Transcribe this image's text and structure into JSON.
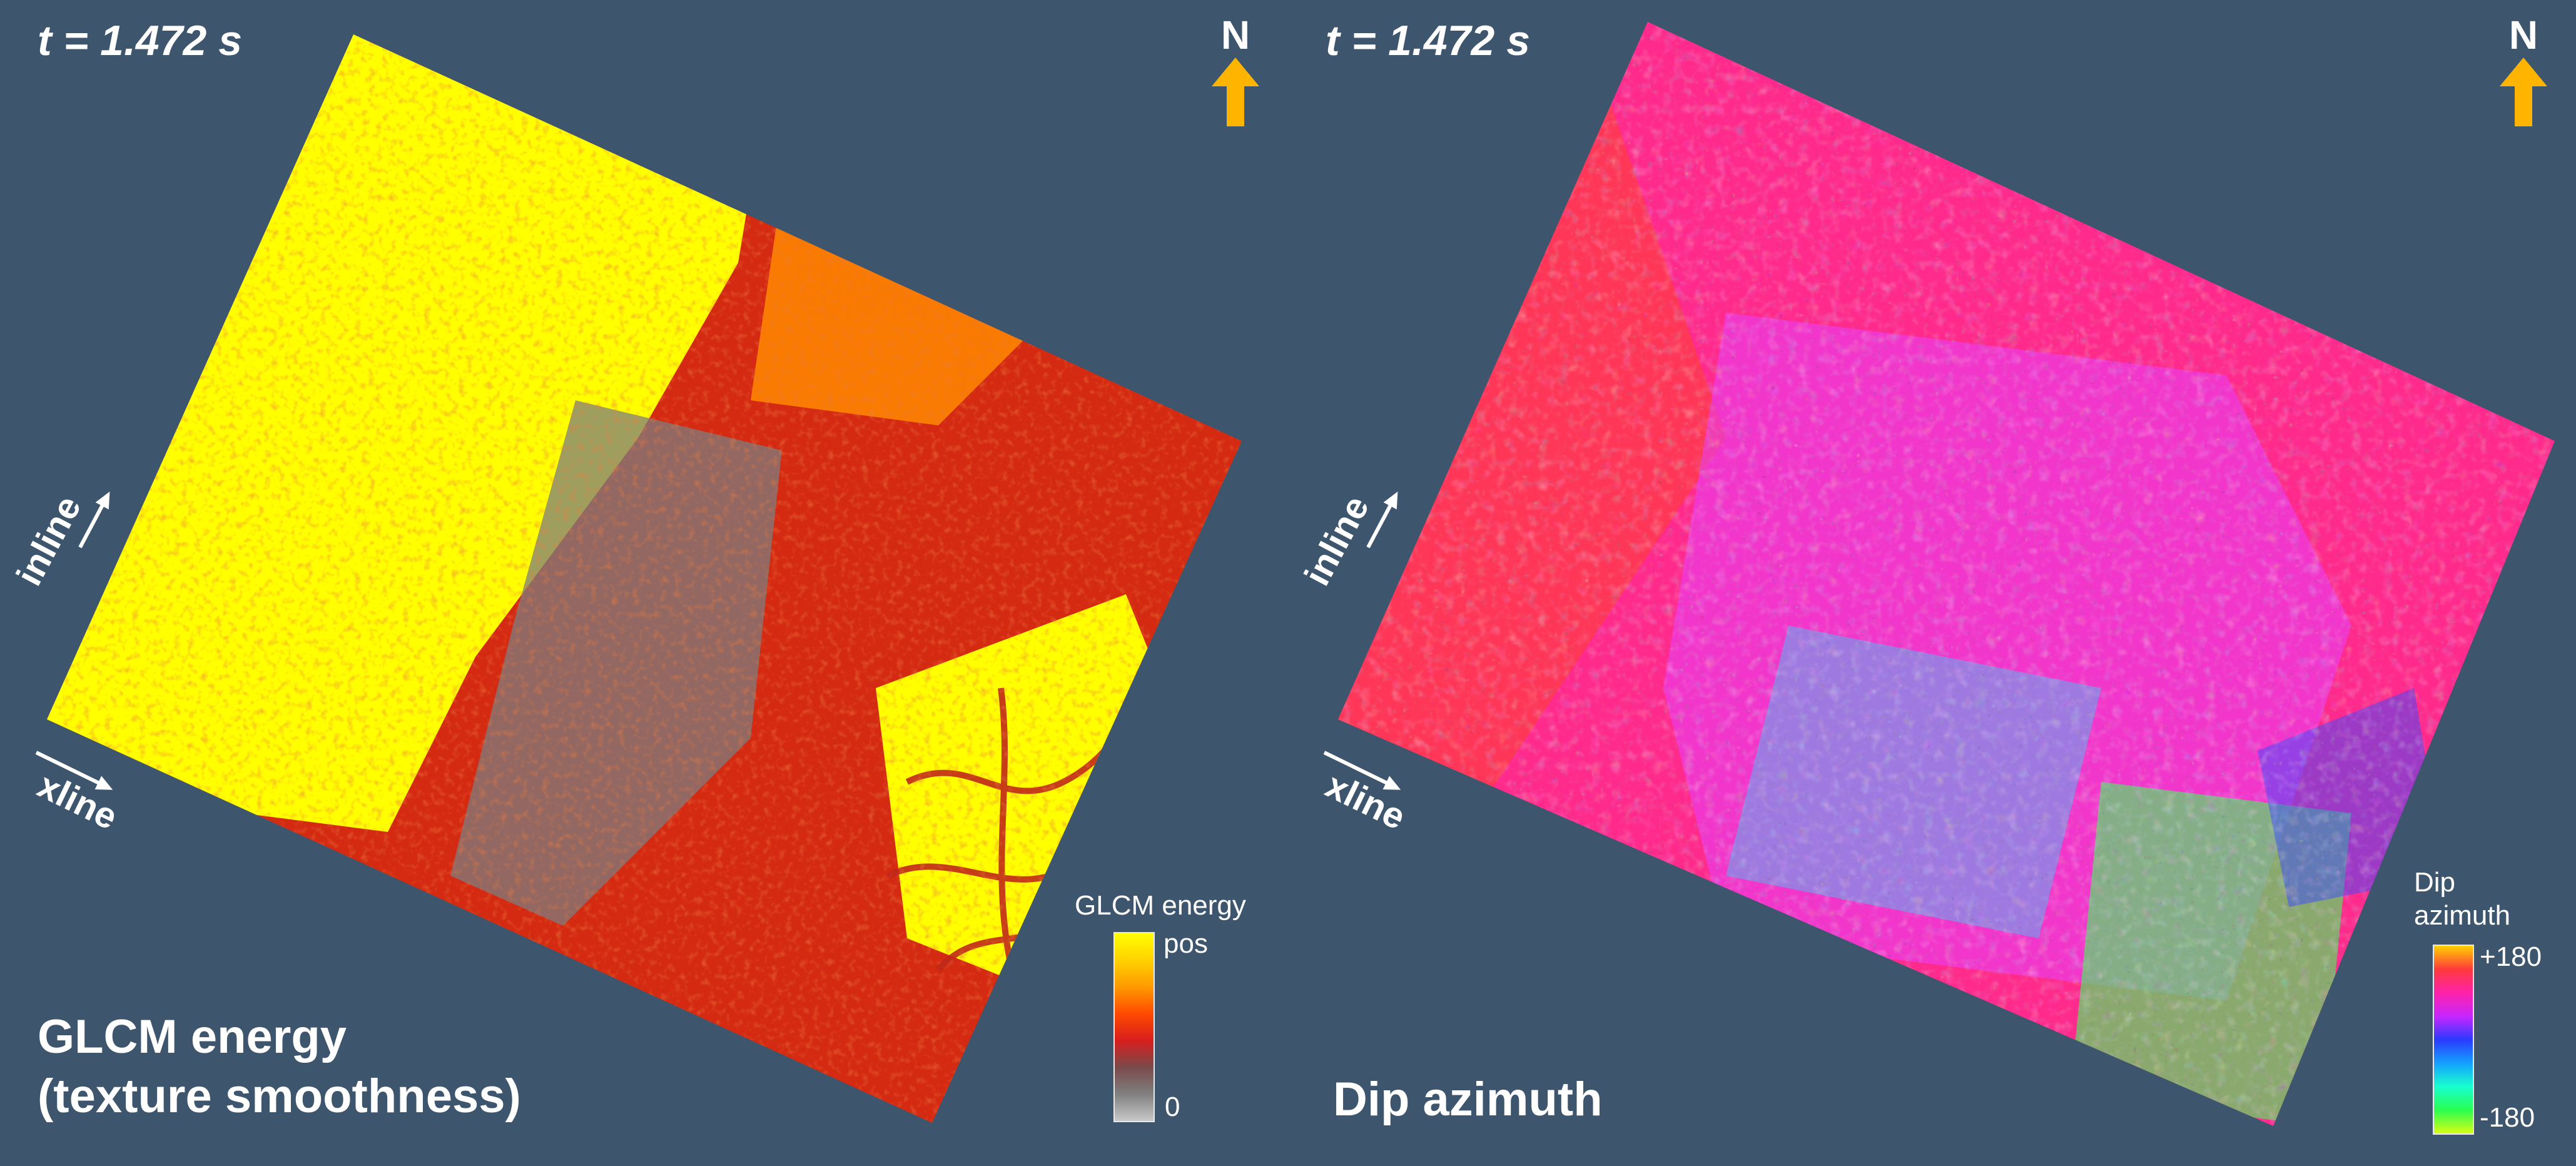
{
  "left_panel": {
    "time_label": "t = 1.472 s",
    "north_label": "N",
    "inline_label": "inline",
    "xline_label": "xline",
    "title_line1": "GLCM energy",
    "title_line2": "(texture smoothness)",
    "colorbar": {
      "title": "GLCM energy",
      "max_label": "pos",
      "min_label": "0",
      "colors": [
        "#ffff00",
        "#ffd200",
        "#ff9a00",
        "#ff4a00",
        "#d81e1e",
        "#7a4a4a",
        "#808080",
        "#c8c8c8"
      ]
    },
    "map_colors": {
      "smooth": "#ffff00",
      "mid": "#ff8a00",
      "rough": "#d42a12",
      "very_rough": "#7d7d7d"
    }
  },
  "right_panel": {
    "time_label": "t = 1.472 s",
    "north_label": "N",
    "inline_label": "inline",
    "xline_label": "xline",
    "title": "Dip azimuth",
    "colorbar": {
      "title_line1": "Dip",
      "title_line2": "azimuth",
      "max_label": "+180",
      "min_label": "-180",
      "colors": [
        "#ffd200",
        "#ff3a3a",
        "#ff22aa",
        "#c826ff",
        "#2a3aff",
        "#14a0ff",
        "#18ffd0",
        "#28ff50",
        "#d8ff14"
      ]
    },
    "map_colors": {
      "pink": "#ff2a8c",
      "red": "#ff3a4a",
      "magenta": "#e840ff",
      "cyan": "#20e0ff",
      "green": "#3cff5a",
      "blue": "#3a4aff"
    }
  },
  "north_arrow_color": "#ffb400"
}
